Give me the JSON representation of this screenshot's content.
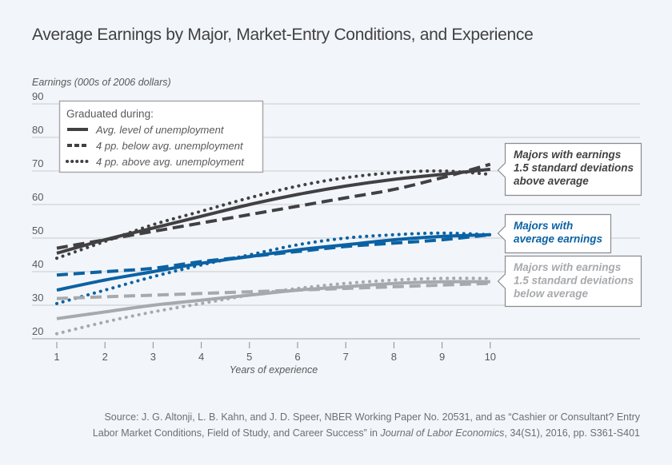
{
  "title": "Average Earnings by Major, Market-Entry Conditions, and Experience",
  "source_text_1": "Source: J. G. Altonji, L. B. Kahn, and J. D. Speer, NBER Working Paper No. 20531, and as “Cashier or Consultant? Entry",
  "source_text_2a": "Labor Market Conditions, Field of Study, and Career Success” in ",
  "source_text_2b": "Journal of Labor Economics",
  "source_text_2c": ", 34(S1), 2016, pp. S361-S401",
  "colors": {
    "high": "#414042",
    "average": "#0b62a4",
    "low": "#a7a9ac",
    "grid": "#d1d3d4",
    "text": "#58595b"
  },
  "chart_data": {
    "type": "line",
    "title": "Average Earnings by Major, Market-Entry Conditions, and Experience",
    "xlabel": "Years of experience",
    "ylabel": "Earnings (000s of 2006 dollars)",
    "x": [
      1,
      2,
      3,
      4,
      5,
      6,
      7,
      8,
      9,
      10
    ],
    "xlim": [
      1,
      10
    ],
    "ylim": [
      20,
      90
    ],
    "yticks": [
      20,
      30,
      40,
      50,
      60,
      70,
      80,
      90
    ],
    "xticks": [
      1,
      2,
      3,
      4,
      5,
      6,
      7,
      8,
      9,
      10
    ],
    "grid": true,
    "legend": {
      "title": "Graduated during:",
      "placement": "top-left",
      "entries": [
        {
          "label": "Avg. level of unemployment",
          "style": "solid"
        },
        {
          "label": "4 pp. below avg. unemployment",
          "style": "dashed"
        },
        {
          "label": "4 pp. above avg. unemployment",
          "style": "dotted"
        }
      ]
    },
    "groups": [
      {
        "name": "high",
        "annotation": [
          "Majors with earnings",
          "1.5 standard deviations",
          "above average"
        ],
        "series": [
          {
            "name": "Avg. level of unemployment",
            "style": "solid",
            "values": [
              45.5,
              49.5,
              53,
              56.5,
              60,
              63,
              65.5,
              67.5,
              69,
              70.5
            ]
          },
          {
            "name": "4 pp. below avg. unemployment",
            "style": "dashed",
            "values": [
              47,
              49.5,
              52,
              54.5,
              57,
              59.5,
              62,
              64.5,
              68,
              72
            ]
          },
          {
            "name": "4 pp. above avg. unemployment",
            "style": "dotted",
            "values": [
              44,
              49,
              54,
              58,
              62,
              65.5,
              68,
              69.5,
              70,
              69
            ]
          }
        ]
      },
      {
        "name": "average",
        "annotation": [
          "Majors with",
          "average earnings"
        ],
        "series": [
          {
            "name": "Avg. level of unemployment",
            "style": "solid",
            "values": [
              34.5,
              37.5,
              40,
              42.5,
              44.5,
              46.5,
              48,
              49.5,
              50.5,
              51
            ]
          },
          {
            "name": "4 pp. below avg. unemployment",
            "style": "dashed",
            "values": [
              39,
              40,
              41,
              43,
              44.5,
              46,
              47.5,
              48.5,
              49.5,
              51
            ]
          },
          {
            "name": "4 pp. above avg. unemployment",
            "style": "dotted",
            "values": [
              30.5,
              34.5,
              38.5,
              42,
              45,
              48,
              50,
              51,
              51.5,
              51
            ]
          }
        ]
      },
      {
        "name": "low",
        "annotation": [
          "Majors with earnings",
          "1.5 standard deviations",
          "below average"
        ],
        "series": [
          {
            "name": "Avg. level of unemployment",
            "style": "solid",
            "values": [
              26,
              28,
              30,
              31.5,
              33,
              34.5,
              35.5,
              36.5,
              37,
              37
            ]
          },
          {
            "name": "4 pp. below avg. unemployment",
            "style": "dashed",
            "values": [
              32,
              32.5,
              33,
              33.5,
              34,
              34.5,
              35,
              35.5,
              36,
              36.5
            ]
          },
          {
            "name": "4 pp. above avg. unemployment",
            "style": "dotted",
            "values": [
              21.5,
              25,
              28,
              30.5,
              33,
              35,
              36.5,
              37.5,
              38,
              38
            ]
          }
        ]
      }
    ]
  }
}
